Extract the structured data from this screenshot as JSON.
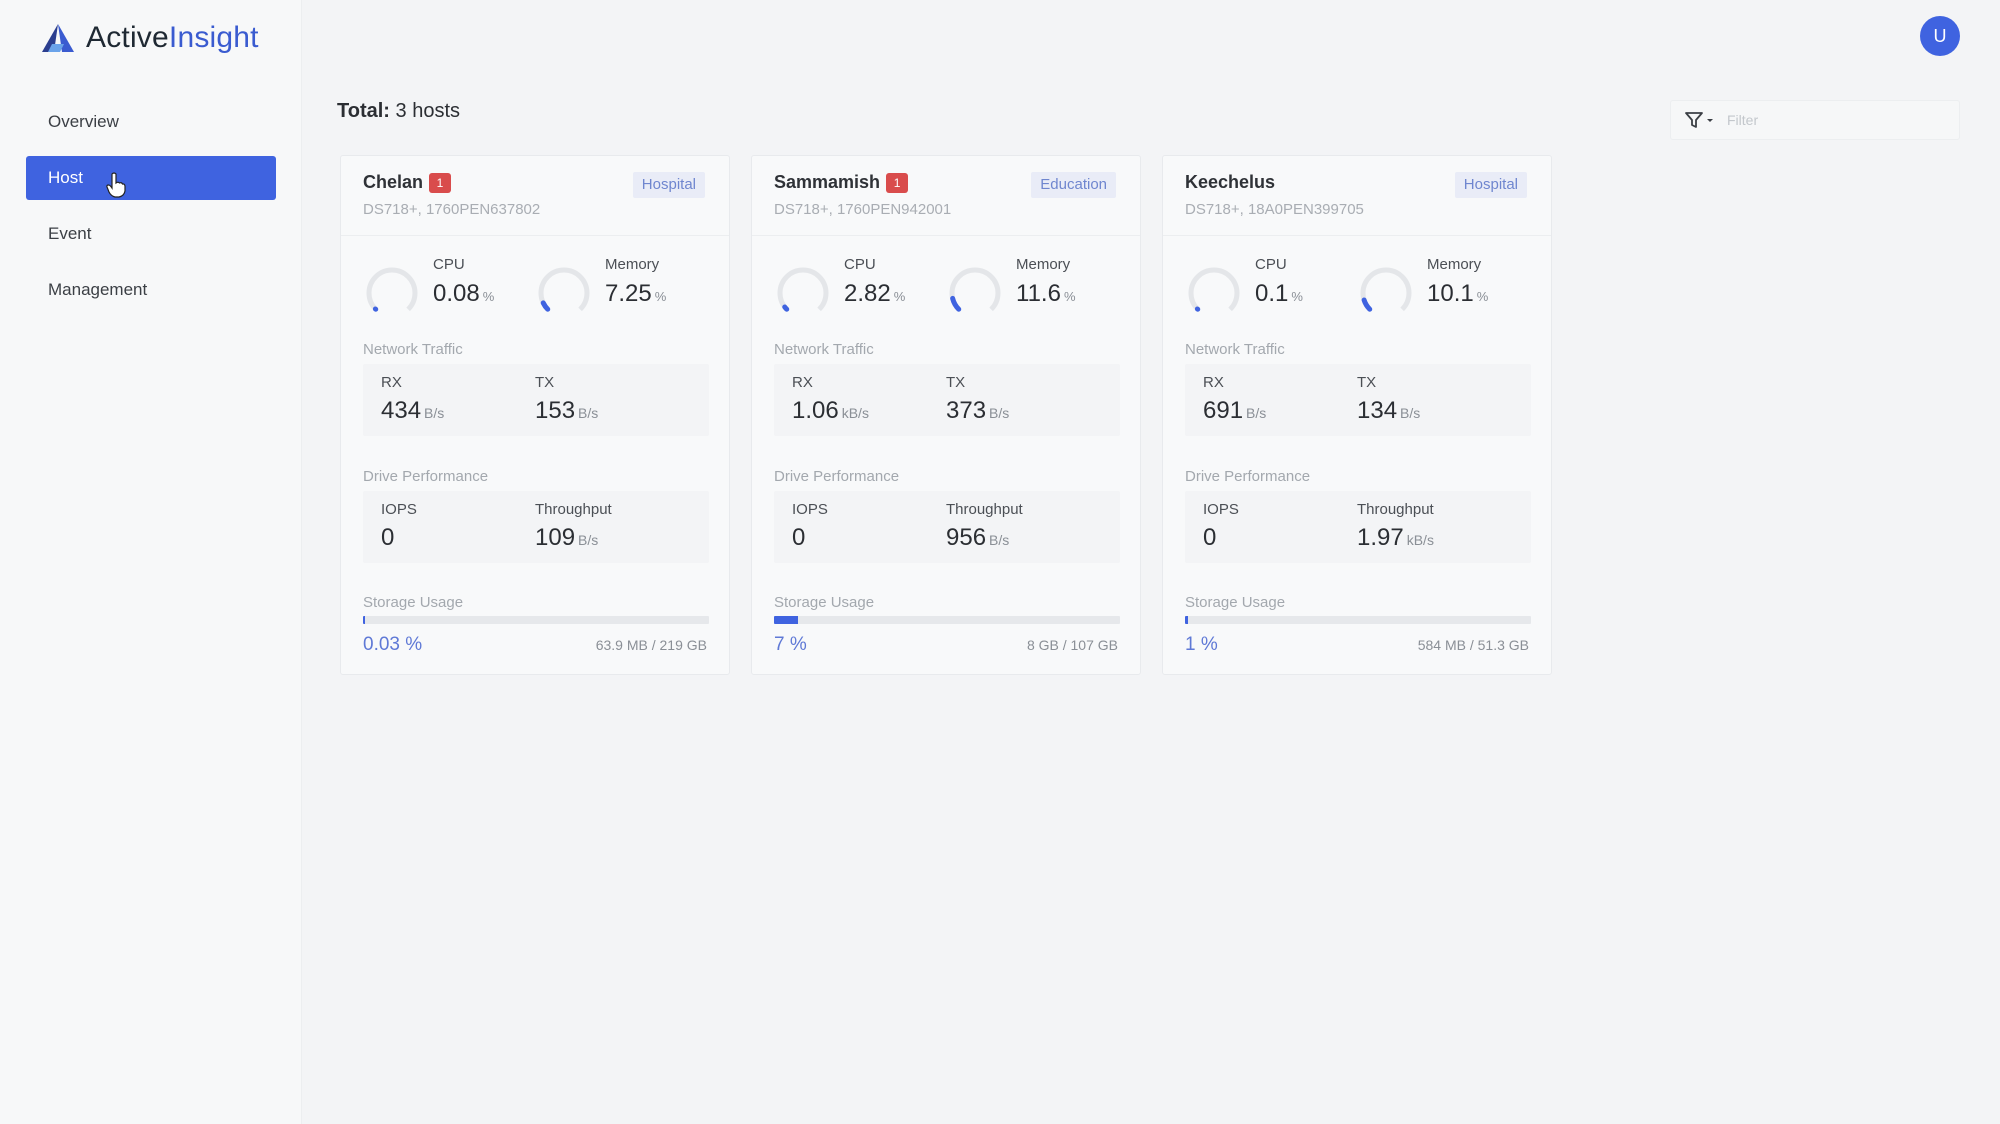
{
  "app": {
    "logo_part1": "Active",
    "logo_part2": "Insight",
    "user_initial": "U"
  },
  "sidebar": {
    "items": [
      {
        "label": "Overview",
        "active": false
      },
      {
        "label": "Host",
        "active": true
      },
      {
        "label": "Event",
        "active": false
      },
      {
        "label": "Management",
        "active": false
      }
    ]
  },
  "header": {
    "total_label": "Total:",
    "total_value": "3 hosts",
    "filter_placeholder": "Filter"
  },
  "labels": {
    "cpu": "CPU",
    "memory": "Memory",
    "network_traffic": "Network Traffic",
    "rx": "RX",
    "tx": "TX",
    "drive_performance": "Drive Performance",
    "iops": "IOPS",
    "throughput": "Throughput",
    "storage_usage": "Storage Usage"
  },
  "hosts": [
    {
      "name": "Chelan",
      "alert_count": "1",
      "tag": "Hospital",
      "model": "DS718+, 1760PEN637802",
      "cpu": {
        "value": "0.08",
        "unit": "%",
        "fraction": 0.0008
      },
      "memory": {
        "value": "7.25",
        "unit": "%",
        "fraction": 0.0725
      },
      "rx": {
        "value": "434",
        "unit": "B/s"
      },
      "tx": {
        "value": "153",
        "unit": "B/s"
      },
      "iops": {
        "value": "0"
      },
      "throughput": {
        "value": "109",
        "unit": "B/s"
      },
      "storage": {
        "percent_label": "0.03 %",
        "fraction": 0.0003,
        "used": "63.9 MB",
        "total": "219 GB"
      }
    },
    {
      "name": "Sammamish",
      "alert_count": "1",
      "tag": "Education",
      "model": "DS718+, 1760PEN942001",
      "cpu": {
        "value": "2.82",
        "unit": "%",
        "fraction": 0.0282
      },
      "memory": {
        "value": "11.6",
        "unit": "%",
        "fraction": 0.116
      },
      "rx": {
        "value": "1.06",
        "unit": "kB/s"
      },
      "tx": {
        "value": "373",
        "unit": "B/s"
      },
      "iops": {
        "value": "0"
      },
      "throughput": {
        "value": "956",
        "unit": "B/s"
      },
      "storage": {
        "percent_label": "7 %",
        "fraction": 0.07,
        "used": "8 GB",
        "total": "107 GB"
      }
    },
    {
      "name": "Keechelus",
      "alert_count": "",
      "tag": "Hospital",
      "model": "DS718+, 18A0PEN399705",
      "cpu": {
        "value": "0.1",
        "unit": "%",
        "fraction": 0.001
      },
      "memory": {
        "value": "10.1",
        "unit": "%",
        "fraction": 0.101
      },
      "rx": {
        "value": "691",
        "unit": "B/s"
      },
      "tx": {
        "value": "134",
        "unit": "B/s"
      },
      "iops": {
        "value": "0"
      },
      "throughput": {
        "value": "1.97",
        "unit": "kB/s"
      },
      "storage": {
        "percent_label": "1 %",
        "fraction": 0.01,
        "used": "584 MB",
        "total": "51.3 GB"
      }
    }
  ],
  "colors": {
    "accent": "#3f63e0",
    "alert": "#d94c4c",
    "tag_bg": "#e9ecf7",
    "tag_text": "#6f86cf"
  }
}
